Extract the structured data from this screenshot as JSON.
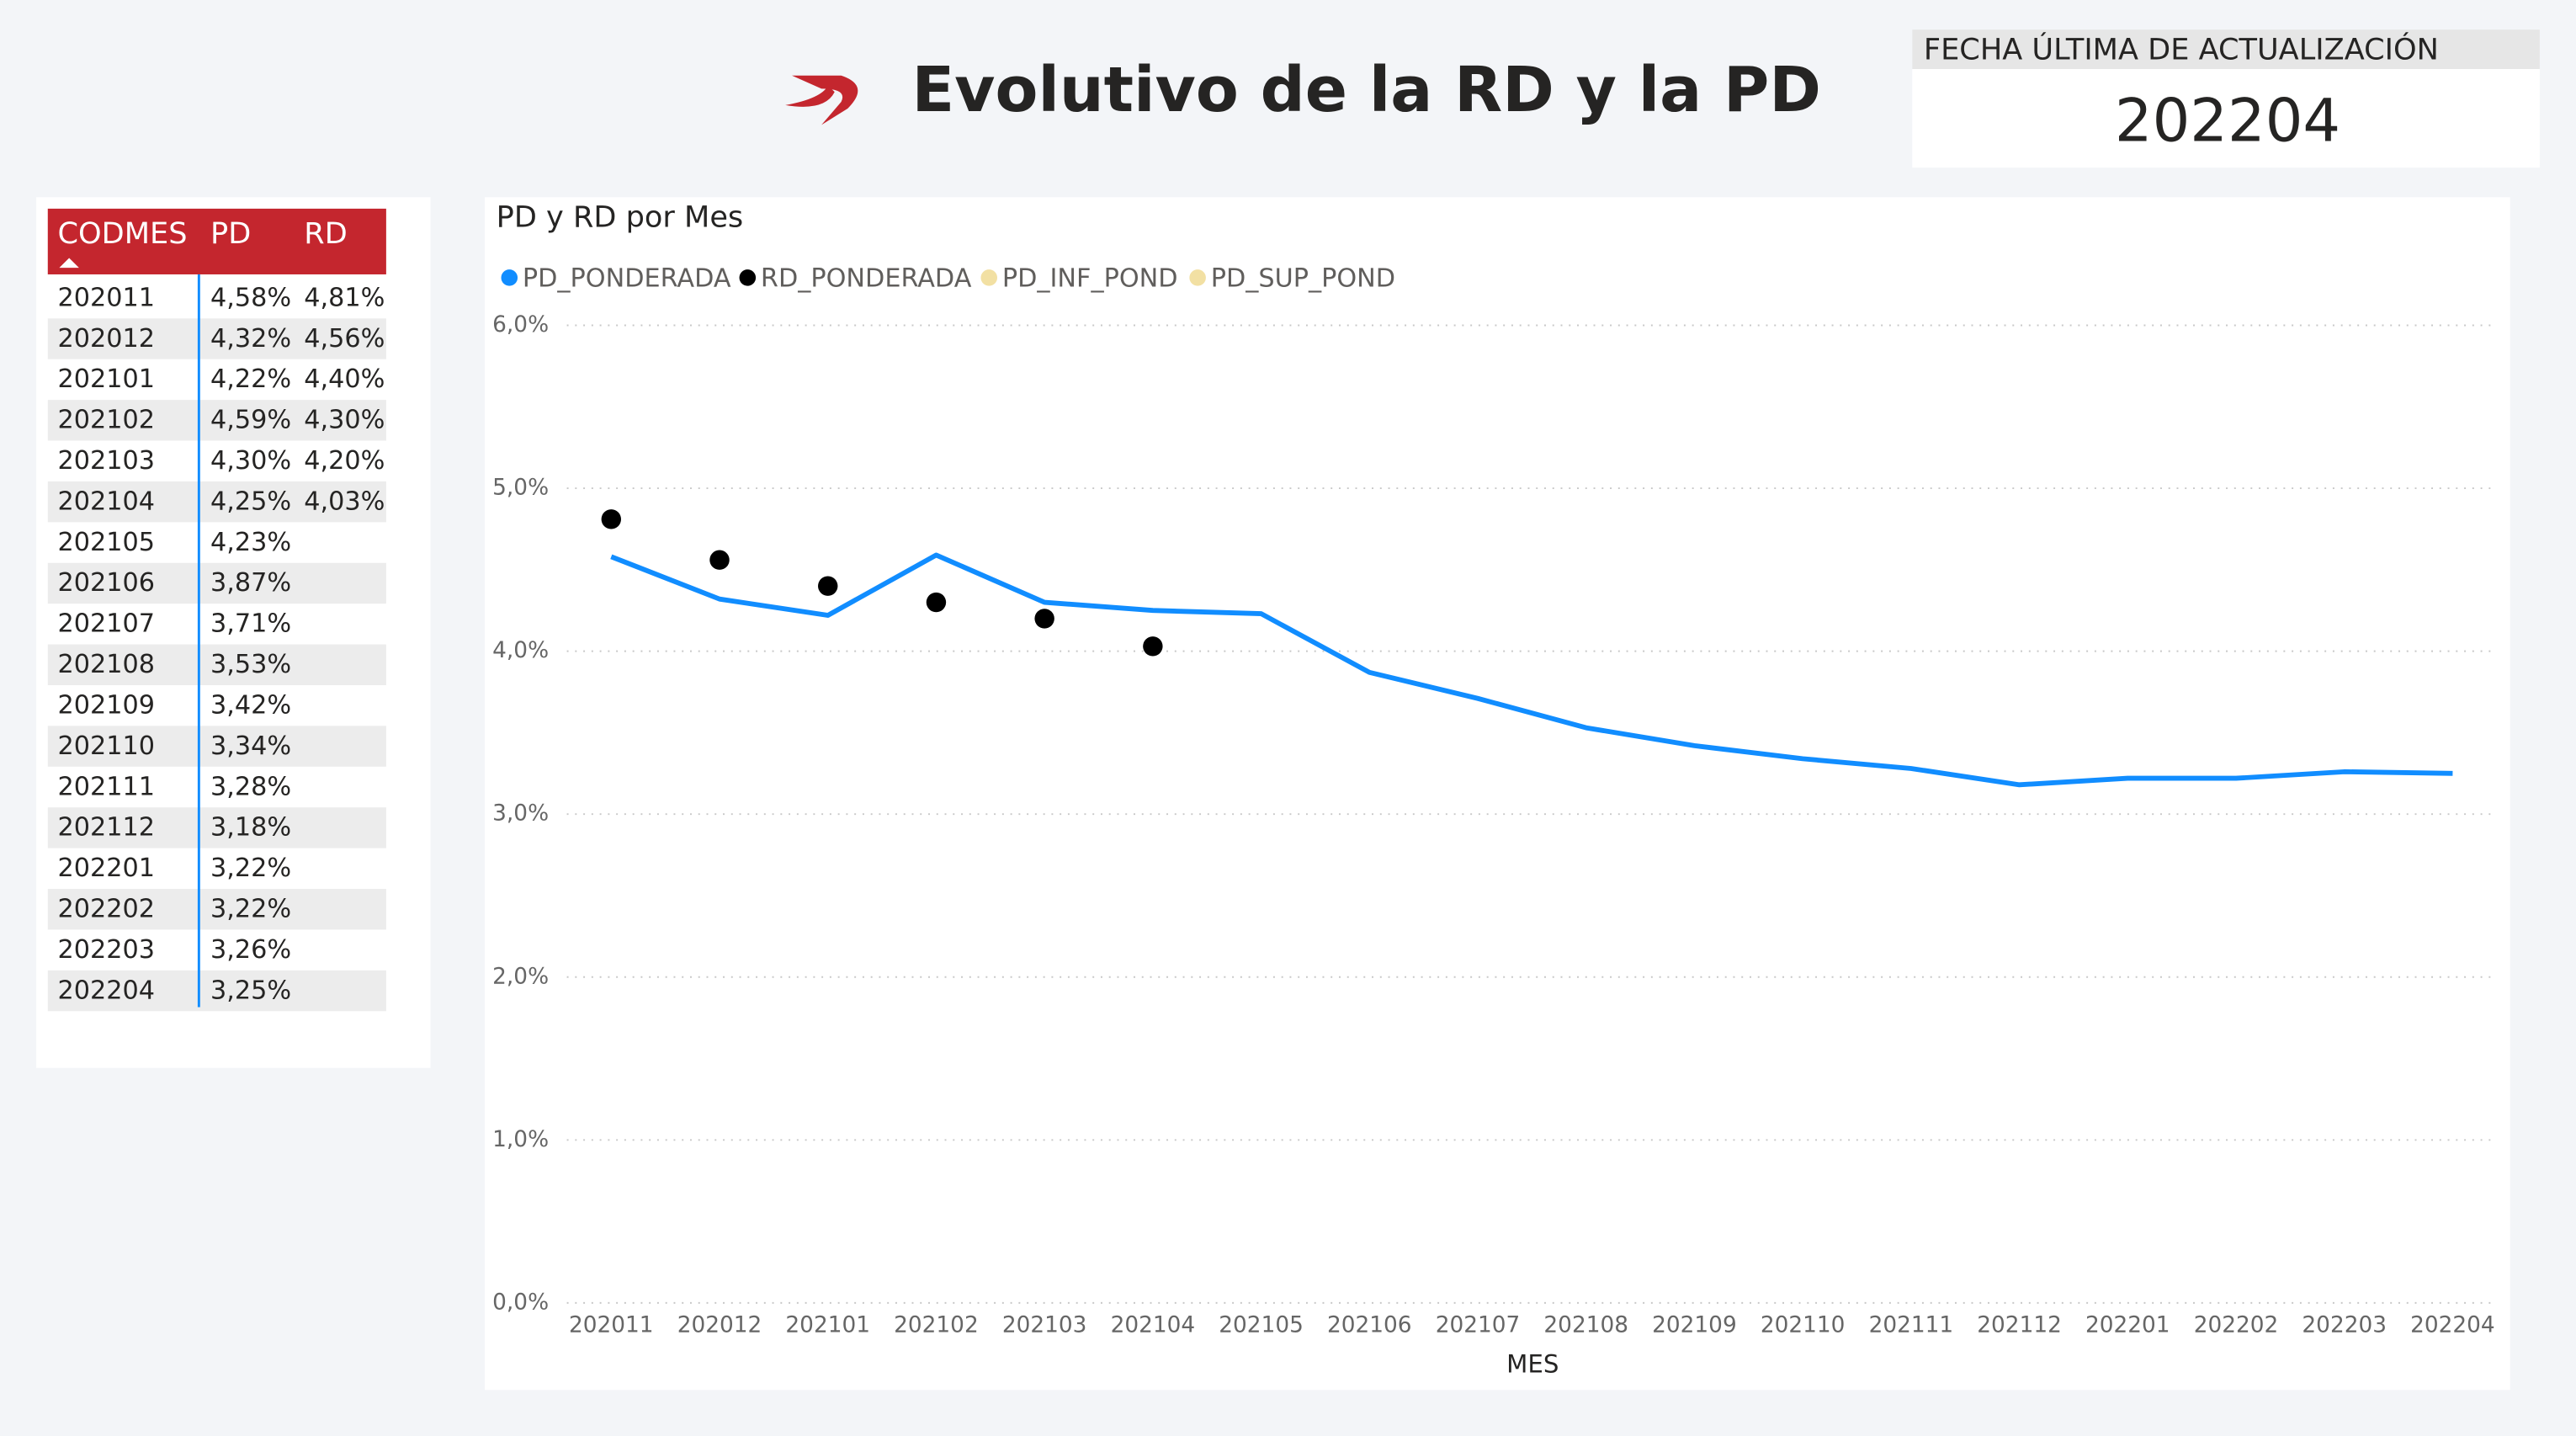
{
  "header": {
    "title": "Evolutivo de la RD y la PD"
  },
  "card": {
    "label": "FECHA ÚLTIMA DE ACTUALIZACIÓN",
    "value": "202204"
  },
  "table": {
    "columns": [
      "CODMES",
      "PD",
      "RD"
    ],
    "rows": [
      [
        "202011",
        "4,58%",
        "4,81%"
      ],
      [
        "202012",
        "4,32%",
        "4,56%"
      ],
      [
        "202101",
        "4,22%",
        "4,40%"
      ],
      [
        "202102",
        "4,59%",
        "4,30%"
      ],
      [
        "202103",
        "4,30%",
        "4,20%"
      ],
      [
        "202104",
        "4,25%",
        "4,03%"
      ],
      [
        "202105",
        "4,23%"
      ],
      [
        "202106",
        "3,87%"
      ],
      [
        "202107",
        "3,71%"
      ],
      [
        "202108",
        "3,53%"
      ],
      [
        "202109",
        "3,42%"
      ],
      [
        "202110",
        "3,34%"
      ],
      [
        "202111",
        "3,28%"
      ],
      [
        "202112",
        "3,18%"
      ],
      [
        "202201",
        "3,22%"
      ],
      [
        "202202",
        "3,22%"
      ],
      [
        "202203",
        "3,26%"
      ],
      [
        "202204",
        "3,25%"
      ]
    ]
  },
  "chart_data": {
    "type": "line",
    "title": "PD y RD por Mes",
    "x_label": "MES",
    "categories": [
      "202011",
      "202012",
      "202101",
      "202102",
      "202103",
      "202104",
      "202105",
      "202106",
      "202107",
      "202108",
      "202109",
      "202110",
      "202111",
      "202112",
      "202201",
      "202202",
      "202203",
      "202204"
    ],
    "series": [
      {
        "name": "PD_PONDERADA",
        "color": "#118dff",
        "style": "line",
        "values": [
          4.58,
          4.32,
          4.22,
          4.59,
          4.3,
          4.25,
          4.23,
          3.87,
          3.71,
          3.53,
          3.42,
          3.34,
          3.28,
          3.18,
          3.22,
          3.22,
          3.26,
          3.25
        ]
      },
      {
        "name": "RD_PONDERADA",
        "color": "#000000",
        "style": "markers",
        "values": [
          4.81,
          4.56,
          4.4,
          4.3,
          4.2,
          4.03,
          null,
          null,
          null,
          null,
          null,
          null,
          null,
          null,
          null,
          null,
          null,
          null
        ]
      },
      {
        "name": "PD_INF_POND",
        "color": "#f2e0a3",
        "style": "line",
        "values": [
          null,
          null,
          null,
          null,
          null,
          null,
          null,
          null,
          null,
          null,
          null,
          null,
          null,
          null,
          null,
          null,
          null,
          null
        ]
      },
      {
        "name": "PD_SUP_POND",
        "color": "#f2e0a3",
        "style": "line",
        "values": [
          null,
          null,
          null,
          null,
          null,
          null,
          null,
          null,
          null,
          null,
          null,
          null,
          null,
          null,
          null,
          null,
          null,
          null
        ]
      }
    ],
    "ylim": [
      0,
      6
    ],
    "yticks": [
      {
        "value": 0,
        "label": "0,0%"
      },
      {
        "value": 1,
        "label": "1,0%"
      },
      {
        "value": 2,
        "label": "2,0%"
      },
      {
        "value": 3,
        "label": "3,0%"
      },
      {
        "value": 4,
        "label": "4,0%"
      },
      {
        "value": 5,
        "label": "5,0%"
      },
      {
        "value": 6,
        "label": "6,0%"
      }
    ],
    "grid": true
  }
}
